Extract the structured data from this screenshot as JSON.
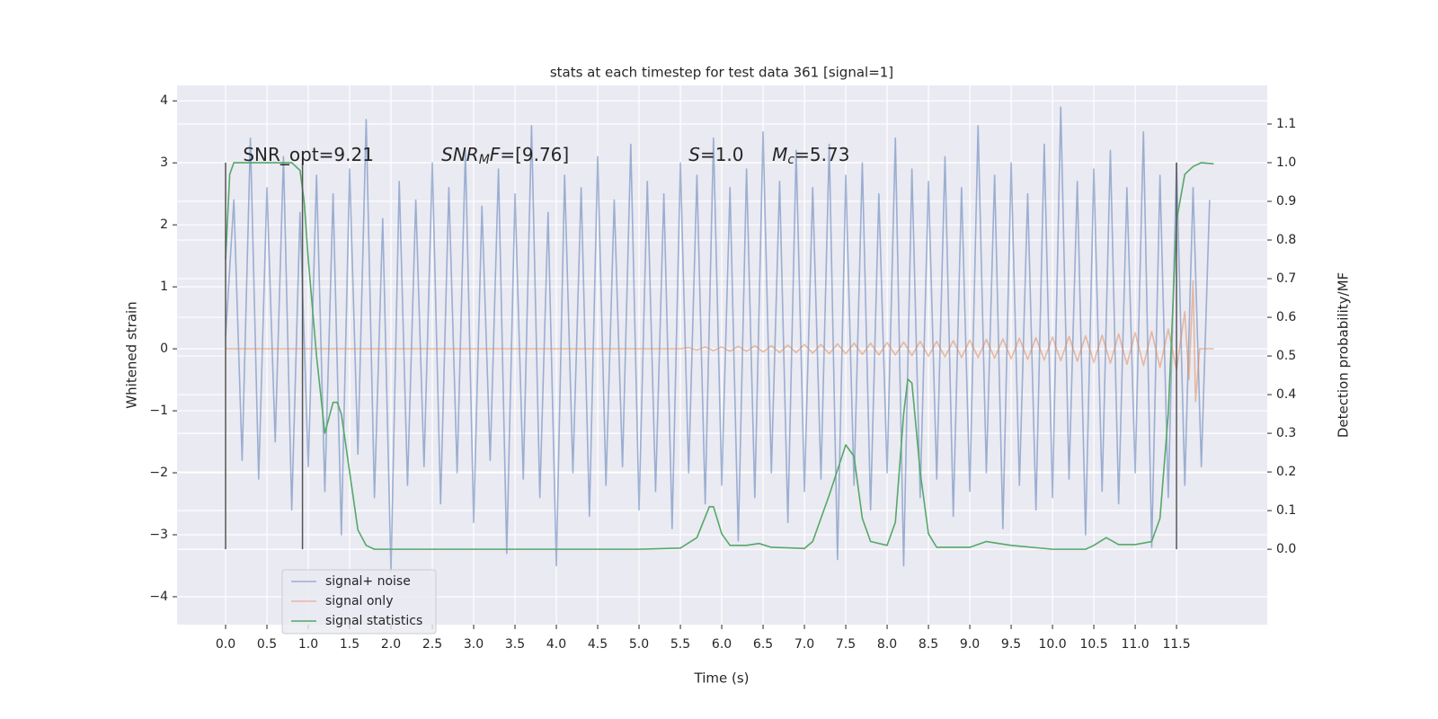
{
  "chart_data": {
    "type": "line",
    "title": "stats at each timestep for test data 361 [signal=1]",
    "xlabel": "Time (s)",
    "ylabel": "Whitened strain",
    "y2label": "Detection probability/MF",
    "xlim": [
      -0.587,
      12.597
    ],
    "ylim": [
      -4.45,
      4.25
    ],
    "y2lim": [
      -0.195,
      1.2
    ],
    "xticks": [
      {
        "value": 0,
        "label": "0.0"
      },
      0.5,
      {
        "value": 1,
        "label": "1.0"
      },
      1.5,
      {
        "value": 2,
        "label": "2.0"
      },
      2.5,
      {
        "value": 3,
        "label": "3.0"
      },
      3.5,
      {
        "value": 4,
        "label": "4.0"
      },
      4.5,
      {
        "value": 5,
        "label": "5.0"
      },
      5.5,
      {
        "value": 6,
        "label": "6.0"
      },
      6.5,
      {
        "value": 7,
        "label": "7.0"
      },
      7.5,
      {
        "value": 8,
        "label": "8.0"
      },
      8.5,
      {
        "value": 9,
        "label": "9.0"
      },
      9.5,
      {
        "value": 10,
        "label": "10.0"
      },
      10.5,
      {
        "value": 11,
        "label": "11.0"
      },
      11.5
    ],
    "yticks": [
      {
        "value": -4,
        "label": "−4"
      },
      {
        "value": -3,
        "label": "−3"
      },
      {
        "value": -2,
        "label": "−2"
      },
      {
        "value": -1,
        "label": "−1"
      },
      0,
      1,
      2,
      3,
      4
    ],
    "y2ticks": [
      {
        "value": 0,
        "label": "0.0"
      },
      0.1,
      0.2,
      0.3,
      0.4,
      0.5,
      0.6,
      0.7,
      0.8,
      0.9,
      {
        "value": 1,
        "label": "1.0"
      },
      1.1
    ],
    "grid": true,
    "legend": "lower left",
    "series": [
      {
        "name": "signal+ noise",
        "color": "#4c72b0",
        "opacity": 0.5,
        "axis": "y",
        "x": [
          0.0,
          0.1,
          0.2,
          0.3,
          0.4,
          0.5,
          0.6,
          0.7,
          0.8,
          0.9,
          1.0,
          1.1,
          1.2,
          1.3,
          1.4,
          1.5,
          1.6,
          1.7,
          1.8,
          1.9,
          2.0,
          2.1,
          2.2,
          2.3,
          2.4,
          2.5,
          2.6,
          2.7,
          2.8,
          2.9,
          3.0,
          3.1,
          3.2,
          3.3,
          3.4,
          3.5,
          3.6,
          3.7,
          3.8,
          3.9,
          4.0,
          4.1,
          4.2,
          4.3,
          4.4,
          4.5,
          4.6,
          4.7,
          4.8,
          4.9,
          5.0,
          5.1,
          5.2,
          5.3,
          5.4,
          5.5,
          5.6,
          5.7,
          5.8,
          5.9,
          6.0,
          6.1,
          6.2,
          6.3,
          6.4,
          6.5,
          6.6,
          6.7,
          6.8,
          6.9,
          7.0,
          7.1,
          7.2,
          7.3,
          7.4,
          7.5,
          7.6,
          7.7,
          7.8,
          7.9,
          8.0,
          8.1,
          8.2,
          8.3,
          8.4,
          8.5,
          8.6,
          8.7,
          8.8,
          8.9,
          9.0,
          9.1,
          9.2,
          9.3,
          9.4,
          9.5,
          9.6,
          9.7,
          9.8,
          9.9,
          10.0,
          10.1,
          10.2,
          10.3,
          10.4,
          10.5,
          10.6,
          10.7,
          10.8,
          10.9,
          11.0,
          11.1,
          11.2,
          11.3,
          11.4,
          11.5,
          11.6,
          11.7,
          11.8,
          11.9
        ],
        "values": [
          0.2,
          2.4,
          -1.8,
          3.4,
          -2.1,
          2.6,
          -1.5,
          3.1,
          -2.6,
          2.2,
          -1.9,
          2.8,
          -2.3,
          2.5,
          -3.0,
          2.9,
          -1.7,
          3.7,
          -2.4,
          2.1,
          -3.6,
          2.7,
          -2.2,
          2.4,
          -1.9,
          3.0,
          -2.5,
          2.6,
          -2.0,
          3.2,
          -2.8,
          2.3,
          -1.8,
          2.9,
          -3.3,
          2.5,
          -2.1,
          3.6,
          -2.4,
          2.2,
          -3.5,
          2.8,
          -2.0,
          2.6,
          -2.7,
          3.1,
          -2.2,
          2.4,
          -1.9,
          3.3,
          -2.6,
          2.7,
          -2.3,
          2.5,
          -2.9,
          3.0,
          -2.0,
          2.8,
          -2.5,
          3.4,
          -2.2,
          2.6,
          -3.1,
          2.9,
          -2.4,
          3.5,
          -2.0,
          2.7,
          -2.8,
          3.2,
          -2.3,
          2.6,
          -2.1,
          3.3,
          -3.4,
          2.8,
          -2.2,
          3.0,
          -2.6,
          2.5,
          -2.0,
          3.4,
          -3.5,
          2.9,
          -2.4,
          2.7,
          -2.1,
          3.1,
          -2.7,
          2.6,
          -2.3,
          3.6,
          -2.0,
          2.8,
          -2.9,
          3.0,
          -2.2,
          2.5,
          -2.6,
          3.3,
          -2.4,
          3.9,
          -2.1,
          2.7,
          -3.0,
          2.9,
          -2.3,
          3.2,
          -2.5,
          2.6,
          -2.0,
          3.5,
          -3.2,
          2.8,
          -2.4,
          3.0,
          -2.2,
          2.6,
          -1.9,
          2.4
        ]
      },
      {
        "name": "signal only",
        "color": "#dd8452",
        "opacity": 0.5,
        "axis": "y",
        "x": [
          0.0,
          5.5,
          5.6,
          5.7,
          5.8,
          5.9,
          6.0,
          6.1,
          6.2,
          6.3,
          6.4,
          6.5,
          6.6,
          6.7,
          6.8,
          6.9,
          7.0,
          7.1,
          7.2,
          7.3,
          7.4,
          7.5,
          7.6,
          7.7,
          7.8,
          7.9,
          8.0,
          8.1,
          8.2,
          8.3,
          8.4,
          8.5,
          8.6,
          8.7,
          8.8,
          8.9,
          9.0,
          9.1,
          9.2,
          9.3,
          9.4,
          9.5,
          9.6,
          9.7,
          9.8,
          9.9,
          10.0,
          10.1,
          10.2,
          10.3,
          10.4,
          10.5,
          10.6,
          10.7,
          10.8,
          10.9,
          11.0,
          11.1,
          11.2,
          11.3,
          11.4,
          11.5,
          11.6,
          11.65,
          11.7,
          11.73,
          11.78,
          11.95
        ],
        "values": [
          0.0,
          0.0,
          0.02,
          -0.02,
          0.03,
          -0.03,
          0.03,
          -0.04,
          0.04,
          -0.04,
          0.05,
          -0.05,
          0.05,
          -0.06,
          0.06,
          -0.06,
          0.07,
          -0.07,
          0.07,
          -0.08,
          0.08,
          -0.08,
          0.09,
          -0.09,
          0.09,
          -0.1,
          0.1,
          -0.1,
          0.11,
          -0.11,
          0.12,
          -0.12,
          0.12,
          -0.13,
          0.13,
          -0.14,
          0.14,
          -0.14,
          0.15,
          -0.15,
          0.16,
          -0.16,
          0.17,
          -0.17,
          0.18,
          -0.18,
          0.19,
          -0.19,
          0.2,
          -0.2,
          0.21,
          -0.22,
          0.22,
          -0.23,
          0.24,
          -0.25,
          0.26,
          -0.27,
          0.28,
          -0.3,
          0.32,
          -0.34,
          0.6,
          -0.5,
          1.1,
          -0.85,
          0.0,
          0.0
        ]
      },
      {
        "name": "signal statistics",
        "color": "#55a868",
        "opacity": 1,
        "axis": "y2",
        "x": [
          0.0,
          0.05,
          0.1,
          0.2,
          0.8,
          0.9,
          0.95,
          1.0,
          1.1,
          1.2,
          1.3,
          1.35,
          1.4,
          1.5,
          1.6,
          1.7,
          1.8,
          2.0,
          3.0,
          4.0,
          5.0,
          5.5,
          5.7,
          5.85,
          5.9,
          6.0,
          6.1,
          6.3,
          6.45,
          6.6,
          7.0,
          7.1,
          7.3,
          7.5,
          7.6,
          7.7,
          7.8,
          8.0,
          8.1,
          8.2,
          8.25,
          8.3,
          8.4,
          8.5,
          8.6,
          9.0,
          9.2,
          9.5,
          10.0,
          10.4,
          10.5,
          10.65,
          10.8,
          11.0,
          11.2,
          11.3,
          11.4,
          11.5,
          11.6,
          11.7,
          11.8,
          11.95
        ],
        "values": [
          0.75,
          0.97,
          1.0,
          1.0,
          1.0,
          0.98,
          0.9,
          0.75,
          0.5,
          0.3,
          0.38,
          0.38,
          0.35,
          0.2,
          0.05,
          0.01,
          0.0,
          0.0,
          0.0,
          0.0,
          0.0,
          0.003,
          0.03,
          0.11,
          0.11,
          0.04,
          0.01,
          0.01,
          0.015,
          0.005,
          0.002,
          0.02,
          0.14,
          0.27,
          0.24,
          0.08,
          0.02,
          0.01,
          0.07,
          0.35,
          0.44,
          0.43,
          0.2,
          0.04,
          0.005,
          0.005,
          0.02,
          0.01,
          0.0,
          0.0,
          0.01,
          0.03,
          0.012,
          0.012,
          0.02,
          0.08,
          0.35,
          0.85,
          0.97,
          0.99,
          1.0,
          0.997
        ]
      }
    ],
    "vlines": {
      "x": [
        0.0,
        0.93,
        11.5
      ],
      "ymin": 0,
      "ymax": 1,
      "color": "#555555",
      "axis": "y2"
    },
    "annotations": [
      {
        "x": 0.21,
        "y": 3.12,
        "parts": [
          {
            "t": "SNR_opt=9.21"
          }
        ]
      },
      {
        "x": 2.61,
        "y": 3.12,
        "parts": [
          {
            "t": "SNR",
            "italic": true
          },
          {
            "t": "M",
            "italic": true,
            "sub": true
          },
          {
            "t": "F",
            "italic": true
          },
          {
            "t": "=[9.76]"
          }
        ]
      },
      {
        "x": 5.6,
        "y": 3.12,
        "parts": [
          {
            "t": "S",
            "italic": true
          },
          {
            "t": "=1.0"
          }
        ]
      },
      {
        "x": 6.61,
        "y": 3.12,
        "parts": [
          {
            "t": "M",
            "italic": true
          },
          {
            "t": "c",
            "italic": true,
            "sub": true
          },
          {
            "t": "=5.73"
          }
        ]
      }
    ]
  }
}
